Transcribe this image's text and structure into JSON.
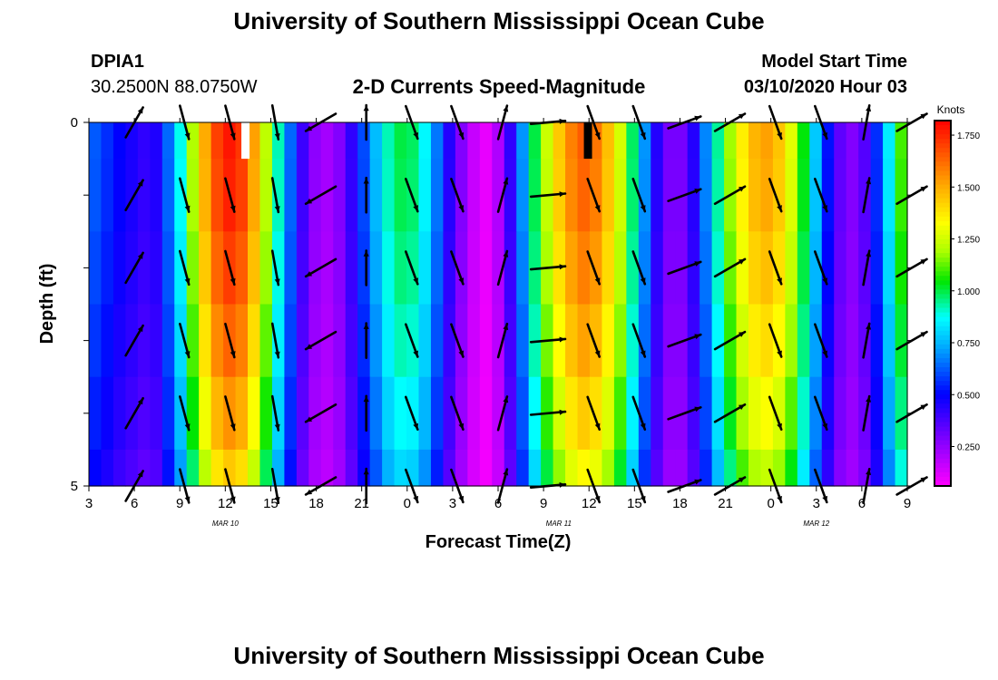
{
  "header": {
    "title": "University of Southern Mississippi Ocean Cube",
    "station_id": "DPIA1",
    "station_coords": "30.2500N 88.0750W",
    "model_start_label": "Model Start Time",
    "model_start_value": "03/10/2020 Hour 03"
  },
  "footer": {
    "title": "University of Southern Mississippi Ocean Cube"
  },
  "chart_data": {
    "type": "heatmap",
    "title": "2-D Currents Speed-Magnitude",
    "xlabel": "Forecast Time(Z)",
    "ylabel": "Depth (ft)",
    "x_tick_labels": [
      "3",
      "6",
      "9",
      "12",
      "15",
      "18",
      "21",
      "0",
      "3",
      "6",
      "9",
      "12",
      "15",
      "18",
      "21",
      "0",
      "3",
      "6",
      "9"
    ],
    "x_range_hours": [
      0,
      54
    ],
    "date_labels": [
      {
        "label": "MAR 10",
        "hour": 9
      },
      {
        "label": "MAR 11",
        "hour": 31
      },
      {
        "label": "MAR 12",
        "hour": 48
      }
    ],
    "y_tick_labels": [
      "0",
      "5"
    ],
    "ylim": [
      0,
      5
    ],
    "depth_bins": [
      0,
      0.5,
      1.5,
      2.5,
      3.5,
      4.5,
      5
    ],
    "colorbar": {
      "label": "Knots",
      "ticks": [
        "1.750",
        "1.500",
        "1.250",
        "1.000",
        "0.750",
        "0.500",
        "0.250"
      ],
      "tick_values": [
        1.75,
        1.5,
        1.25,
        1.0,
        0.75,
        0.5,
        0.25
      ],
      "range": [
        0.06,
        1.82
      ]
    },
    "speed_knots_by_hour": [
      0.62,
      0.56,
      0.5,
      0.46,
      0.42,
      0.45,
      0.64,
      0.88,
      1.2,
      1.5,
      1.7,
      1.78,
      1.72,
      1.52,
      1.22,
      0.92,
      0.64,
      0.4,
      0.26,
      0.22,
      0.28,
      0.42,
      0.6,
      0.76,
      0.92,
      1.0,
      0.98,
      0.86,
      0.66,
      0.44,
      0.28,
      0.16,
      0.1,
      0.2,
      0.42,
      0.7,
      1.0,
      1.24,
      1.44,
      1.58,
      1.65,
      1.6,
      1.46,
      1.26,
      0.98,
      0.7,
      0.44,
      0.3,
      0.3,
      0.44,
      0.68,
      0.94,
      1.18,
      1.36,
      1.48,
      1.52,
      1.45,
      1.28,
      1.04,
      0.78,
      0.52,
      0.34,
      0.28,
      0.36,
      0.56,
      0.84,
      1.1
    ],
    "depth_factors": [
      1.0,
      0.99,
      0.96,
      0.92,
      0.87,
      0.81
    ],
    "markers": [
      {
        "hour": 10.3,
        "color": "#ffffff"
      },
      {
        "hour": 32.9,
        "color": "#000000"
      }
    ],
    "vector_hours": [
      3,
      6.3,
      9.3,
      12.3,
      15.3,
      18.3,
      21.3,
      24.3,
      27.3,
      30.3,
      33.3,
      36.3,
      39.3,
      42.3,
      45.3,
      48.3,
      51.3,
      54.3
    ],
    "vector_depths": [
      0,
      1,
      2,
      3,
      4,
      5
    ],
    "vector_direction_deg": [
      30,
      165,
      165,
      170,
      240,
      0,
      160,
      160,
      15,
      85,
      160,
      160,
      70,
      60,
      160,
      160,
      10,
      60
    ]
  },
  "colors": {
    "background": "#ffffff",
    "axis": "#000000",
    "vector": "#000000"
  }
}
